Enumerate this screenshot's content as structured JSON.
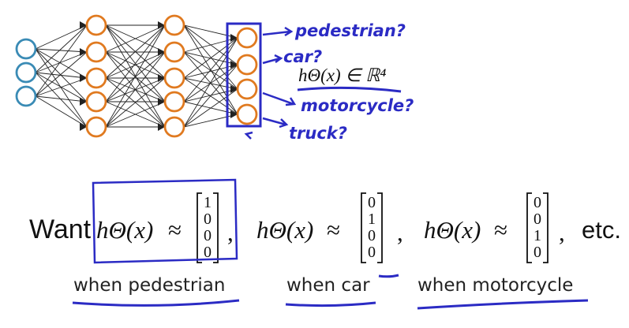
{
  "network": {
    "layers": [
      3,
      5,
      5,
      4
    ],
    "colors": {
      "input": "#3a8bb5",
      "hidden": "#e07a20",
      "output": "#e07a20",
      "edge": "#222222",
      "pen": "#2b2bc4"
    }
  },
  "annotations": {
    "outputs": [
      "pedestrian?",
      "car?",
      "motorcycle?",
      "truck?"
    ],
    "hypothesis_space": "hΘ(x) ∈ ℝ⁴"
  },
  "equation": {
    "want": "Want",
    "hyp": "hΘ(x)",
    "approx": "≈",
    "vectors": [
      [
        "1",
        "0",
        "0",
        "0"
      ],
      [
        "0",
        "1",
        "0",
        "0"
      ],
      [
        "0",
        "0",
        "1",
        "0"
      ]
    ],
    "comma": ",",
    "etc": "etc."
  },
  "labels": {
    "pedestrian": "when pedestrian",
    "car": "when car",
    "motorcycle": "when motorcycle"
  }
}
